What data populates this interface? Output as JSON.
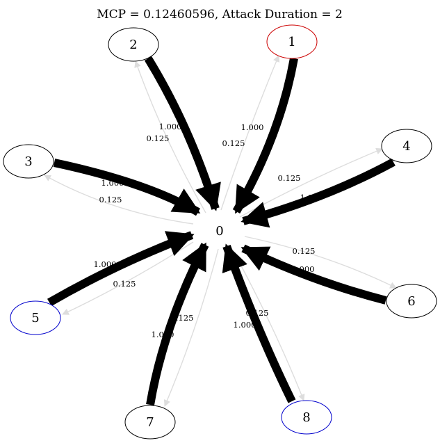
{
  "title": "MCP = 0.12460596, Attack Duration = 2",
  "colors": {
    "heavy_edge": "#000000",
    "light_edge": "#dddddd",
    "node_default": "#000000",
    "node_red": "#cc0000",
    "node_blue": "#0000cc"
  },
  "nodes": [
    {
      "id": "0",
      "label": "0",
      "border": "none"
    },
    {
      "id": "1",
      "label": "1",
      "border": "red"
    },
    {
      "id": "2",
      "label": "2",
      "border": "black"
    },
    {
      "id": "3",
      "label": "3",
      "border": "black"
    },
    {
      "id": "4",
      "label": "4",
      "border": "black"
    },
    {
      "id": "5",
      "label": "5",
      "border": "blue"
    },
    {
      "id": "6",
      "label": "6",
      "border": "black"
    },
    {
      "id": "7",
      "label": "7",
      "border": "black"
    },
    {
      "id": "8",
      "label": "8",
      "border": "blue"
    }
  ],
  "edges_in": [
    {
      "from": "1",
      "to": "0",
      "label": "1.000"
    },
    {
      "from": "2",
      "to": "0",
      "label": "1.000"
    },
    {
      "from": "3",
      "to": "0",
      "label": "1.000"
    },
    {
      "from": "4",
      "to": "0",
      "label": "1.000"
    },
    {
      "from": "5",
      "to": "0",
      "label": "1.000"
    },
    {
      "from": "6",
      "to": "0",
      "label": "1.000"
    },
    {
      "from": "7",
      "to": "0",
      "label": "1.000"
    },
    {
      "from": "8",
      "to": "0",
      "label": "1.000"
    }
  ],
  "edges_out": [
    {
      "from": "0",
      "to": "1",
      "label": "0.125"
    },
    {
      "from": "0",
      "to": "2",
      "label": "0.125"
    },
    {
      "from": "0",
      "to": "3",
      "label": "0.125"
    },
    {
      "from": "0",
      "to": "4",
      "label": "0.125"
    },
    {
      "from": "0",
      "to": "5",
      "label": "0.125"
    },
    {
      "from": "0",
      "to": "6",
      "label": "0.125"
    },
    {
      "from": "0",
      "to": "7",
      "label": "0.125"
    },
    {
      "from": "0",
      "to": "8",
      "label": "0.125"
    }
  ]
}
